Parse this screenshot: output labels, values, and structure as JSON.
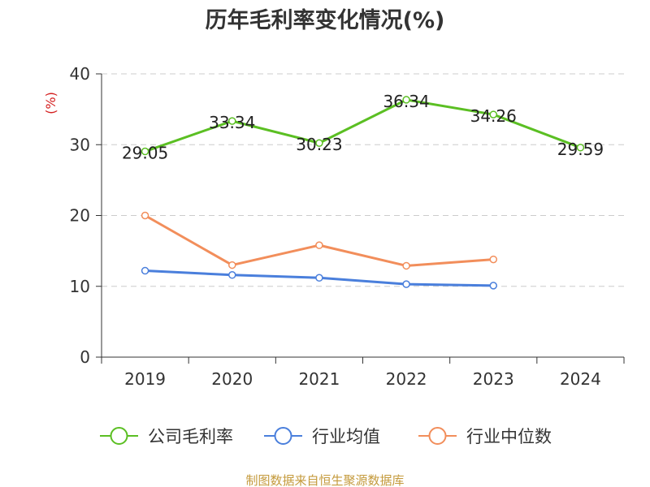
{
  "chart_data": {
    "type": "line",
    "title": "历年毛利率变化情况(%)",
    "ylabel": "(%)",
    "categories": [
      "2019",
      "2020",
      "2021",
      "2022",
      "2023",
      "2024"
    ],
    "ylim": [
      0,
      40
    ],
    "yticks": [
      "0",
      "10",
      "20",
      "30",
      "40"
    ],
    "grid": true,
    "legend_position": "bottom",
    "series": [
      {
        "name": "公司毛利率",
        "color": "#5bbf23",
        "values": [
          29.05,
          33.34,
          30.23,
          36.34,
          34.26,
          29.59
        ],
        "labels": [
          "29.05",
          "33.34",
          "30.23",
          "36.34",
          "34.26",
          "29.59"
        ]
      },
      {
        "name": "行业均值",
        "color": "#4a7fdc",
        "values": [
          12.2,
          11.6,
          11.2,
          10.3,
          10.1,
          null
        ]
      },
      {
        "name": "行业中位数",
        "color": "#f28e5b",
        "values": [
          20.0,
          13.0,
          15.8,
          12.9,
          13.8,
          null
        ]
      }
    ],
    "source": "制图数据来自恒生聚源数据库"
  }
}
